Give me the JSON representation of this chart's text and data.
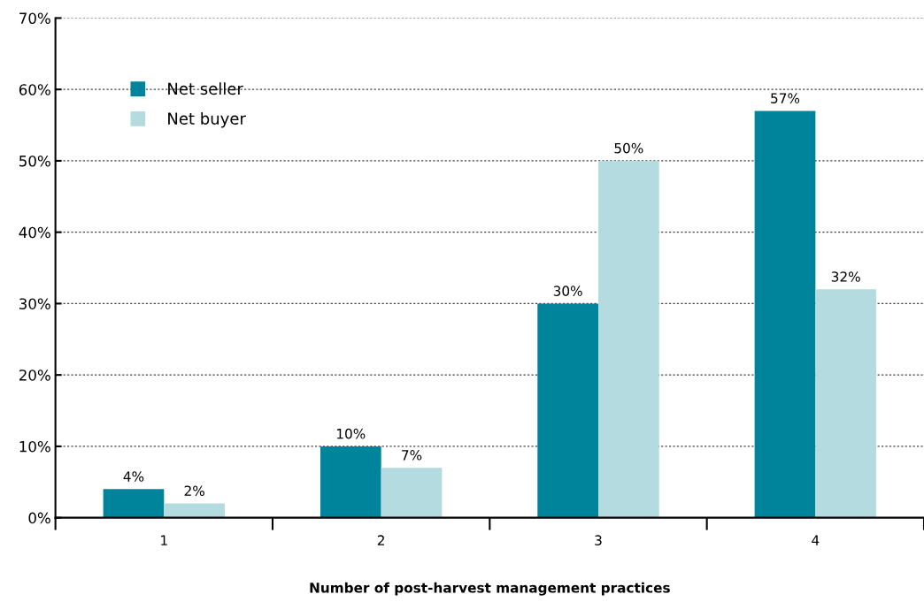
{
  "chart_data": {
    "type": "bar",
    "xlabel": "Number of post-harvest management practices",
    "categories": [
      "1",
      "2",
      "3",
      "4"
    ],
    "series": [
      {
        "name": "Net seller",
        "color": "#00849b",
        "values": [
          4,
          10,
          30,
          57
        ],
        "value_labels": [
          "4%",
          "10%",
          "30%",
          "57%"
        ]
      },
      {
        "name": "Net buyer",
        "color": "#b3dbe0",
        "values": [
          2,
          7,
          50,
          32
        ],
        "value_labels": [
          "2%",
          "7%",
          "50%",
          "32%"
        ]
      }
    ],
    "ylim": [
      0,
      70
    ],
    "yticks": [
      {
        "value": 0,
        "label": "0%"
      },
      {
        "value": 10,
        "label": "10%"
      },
      {
        "value": 20,
        "label": "20%"
      },
      {
        "value": 30,
        "label": "30%"
      },
      {
        "value": 40,
        "label": "40%"
      },
      {
        "value": 50,
        "label": "50%"
      },
      {
        "value": 60,
        "label": "60%"
      },
      {
        "value": 70,
        "label": "70%"
      }
    ],
    "grid": "y",
    "legend": "top left"
  }
}
